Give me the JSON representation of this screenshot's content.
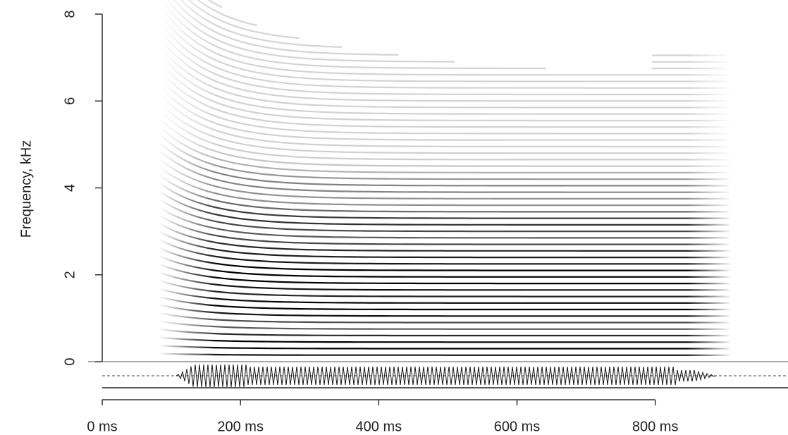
{
  "chart_data": {
    "type": "spectrogram",
    "ylabel": "Frequency, kHz",
    "ylim": [
      0,
      8
    ],
    "yticks": [
      0,
      2,
      4,
      6,
      8
    ],
    "xlim": [
      0,
      992
    ],
    "xticks": [
      {
        "value": 0,
        "label": "0 ms"
      },
      {
        "value": 200,
        "label": "200 ms"
      },
      {
        "value": 400,
        "label": "400 ms"
      },
      {
        "value": 600,
        "label": "600 ms"
      },
      {
        "value": 800,
        "label": "800 ms"
      }
    ]
  }
}
